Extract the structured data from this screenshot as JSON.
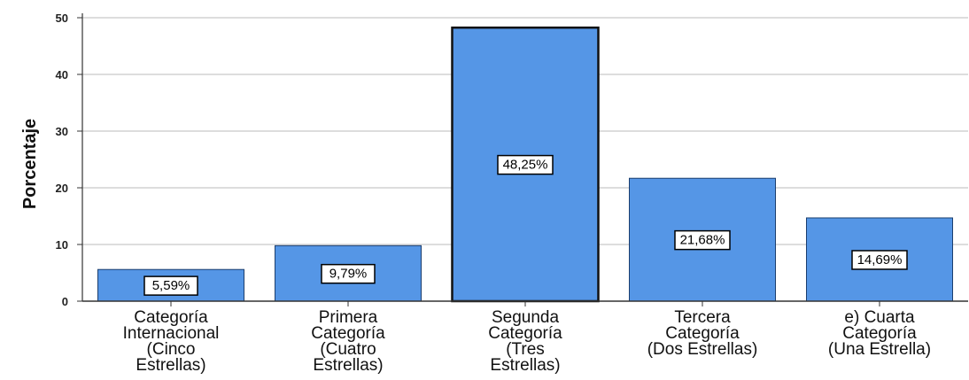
{
  "chart_data": {
    "type": "bar",
    "title": "",
    "xlabel": "",
    "ylabel": "Porcentaje",
    "ylim": [
      0,
      50
    ],
    "yticks": [
      0,
      10,
      20,
      30,
      40,
      50
    ],
    "grid": true,
    "bar_color": "#5596e6",
    "bar_edge_color": "#1b3e6e",
    "highlight_edge_color": "#111111",
    "categories": [
      [
        "Categoría",
        "Internacional",
        "(Cinco",
        "Estrellas)"
      ],
      [
        "Primera",
        "Categoría",
        "(Cuatro",
        "Estrellas)"
      ],
      [
        "Segunda",
        "Categoría",
        "(Tres",
        "Estrellas)"
      ],
      [
        "Tercera",
        "Categoría",
        "(Dos Estrellas)"
      ],
      [
        "e) Cuarta",
        "Categoría",
        "(Una Estrella)"
      ]
    ],
    "values": [
      5.59,
      9.79,
      48.25,
      21.68,
      14.69
    ],
    "data_labels": [
      "5,59%",
      "9,79%",
      "48,25%",
      "21,68%",
      "14,69%"
    ]
  }
}
